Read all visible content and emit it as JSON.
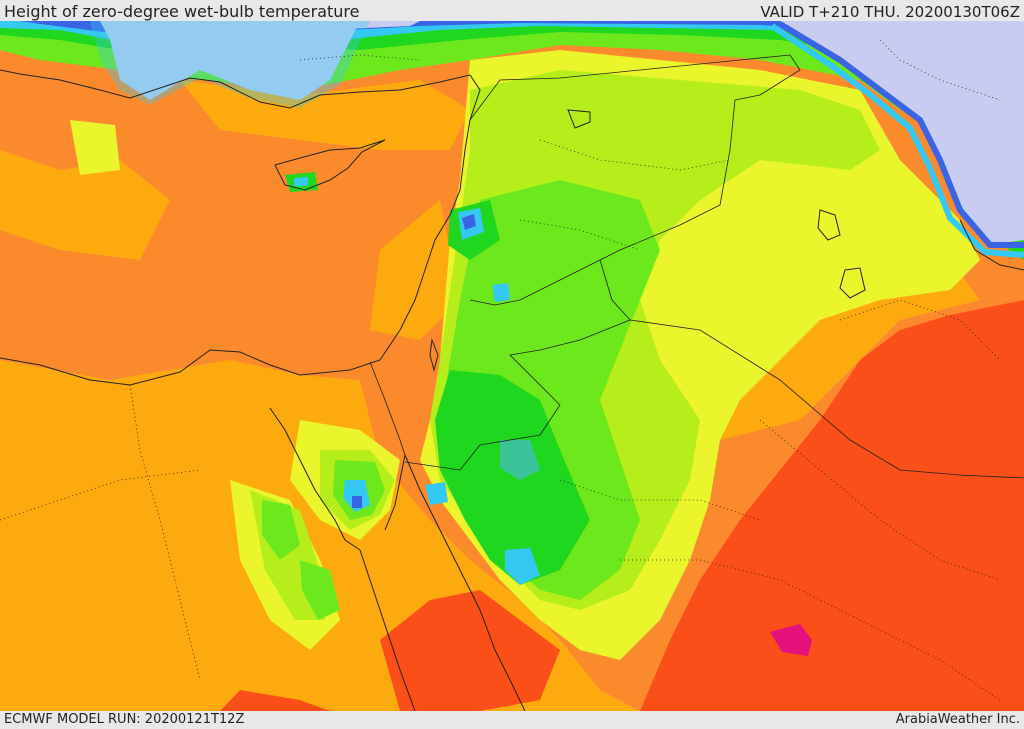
{
  "header": {
    "title": "Height of zero-degree wet-bulb temperature",
    "valid": "VALID T+210 THU. 20200130T06Z"
  },
  "footer": {
    "model_run": "ECMWF MODEL RUN: 20200121T12Z",
    "credit": "ArabiaWeather Inc."
  },
  "colors": {
    "dark_orange_red": "#fb4f19",
    "orange": "#fb8a2d",
    "light_orange": "#fdaa0e",
    "yellow": "#eaf52c",
    "yellow_green": "#b5ee1a",
    "green": "#6de81c",
    "bright_green": "#1fd71f",
    "teal": "#3bc49a",
    "cyan": "#33c9f2",
    "blue": "#3a64e6",
    "lavender": "#c8ccf0",
    "magenta": "#e5117d",
    "border": "#222222"
  }
}
